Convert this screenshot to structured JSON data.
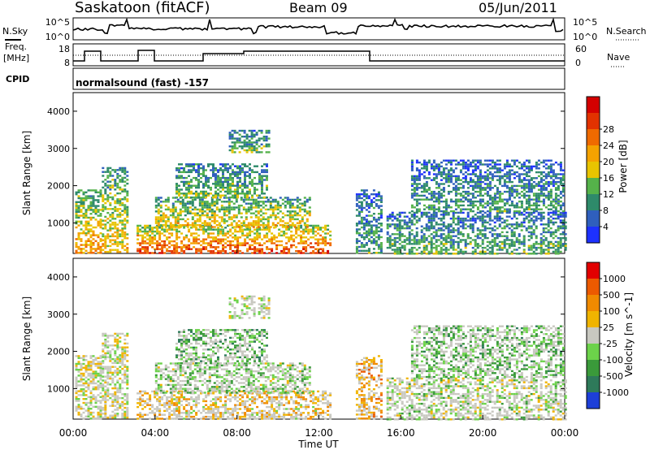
{
  "header": {
    "station": "Saskatoon (fitACF)",
    "beam": "Beam 09",
    "date": "05/Jun/2011"
  },
  "status": {
    "nsky_label": "N.Sky",
    "nsearch_label": "N.Search",
    "noise_ticks": [
      "10^5",
      "10^0"
    ],
    "freq_label": "Freq.",
    "freq_unit": "[MHz]",
    "freq_ticks": [
      "18",
      "8"
    ],
    "nave_ticks": [
      "60",
      "0"
    ],
    "nave_label": "Nave",
    "cpid_label": "CPID",
    "cpid_text": "normalsound (fast) -157"
  },
  "chart_data": [
    {
      "type": "heatmap",
      "title": "Power",
      "xlabel": "Time UT",
      "ylabel": "Slant Range [km]",
      "x_ticks": [
        "00:00",
        "04:00",
        "08:00",
        "12:00",
        "16:00",
        "20:00",
        "00:00"
      ],
      "xlim_hours": [
        0,
        24
      ],
      "y_ticks": [
        1000,
        2000,
        3000,
        4000
      ],
      "ylim_km": [
        180,
        4500
      ],
      "colorbar": {
        "label": "Power [dB]",
        "ticks": [
          4,
          8,
          12,
          16,
          20,
          24,
          28
        ],
        "colors": [
          "#1d31ff",
          "#2f5fbd",
          "#2e8a6a",
          "#55b24a",
          "#e8c400",
          "#f4a200",
          "#ef6a00",
          "#e23200",
          "#d40000"
        ]
      },
      "echo_regions": [
        {
          "t0": 0.1,
          "t1": 1.3,
          "r0": 200,
          "r1": 1900,
          "level": 0.7
        },
        {
          "t0": 1.4,
          "t1": 2.6,
          "r0": 200,
          "r1": 2500,
          "level": 0.6
        },
        {
          "t0": 3.1,
          "t1": 12.6,
          "r0": 200,
          "r1": 950,
          "level": 0.9
        },
        {
          "t0": 4.0,
          "t1": 11.5,
          "r0": 900,
          "r1": 1700,
          "level": 0.6
        },
        {
          "t0": 5.0,
          "t1": 9.5,
          "r0": 1700,
          "r1": 2600,
          "level": 0.4
        },
        {
          "t0": 7.6,
          "t1": 9.6,
          "r0": 2900,
          "r1": 3500,
          "level": 0.4
        },
        {
          "t0": 13.8,
          "t1": 15.0,
          "r0": 200,
          "r1": 1900,
          "level": 0.3
        },
        {
          "t0": 15.3,
          "t1": 24.0,
          "r0": 200,
          "r1": 1300,
          "level": 0.35
        },
        {
          "t0": 16.5,
          "t1": 23.9,
          "r0": 1300,
          "r1": 2700,
          "level": 0.3
        }
      ]
    },
    {
      "type": "heatmap",
      "title": "Velocity",
      "xlabel": "Time UT",
      "ylabel": "Slant Range [km]",
      "x_ticks": [
        "00:00",
        "04:00",
        "08:00",
        "12:00",
        "16:00",
        "20:00",
        "00:00"
      ],
      "xlim_hours": [
        0,
        24
      ],
      "y_ticks": [
        1000,
        2000,
        3000,
        4000
      ],
      "ylim_km": [
        180,
        4500
      ],
      "colorbar": {
        "label": "Velocity [m s^-1]",
        "ticks": [
          1000,
          500,
          100,
          25,
          -25,
          -100,
          -500,
          -1000
        ],
        "colors": [
          "#1d3fd8",
          "#2e7a5a",
          "#3a9a3a",
          "#6cd24a",
          "#c8c8c0",
          "#f0b400",
          "#f08a00",
          "#ec5a00",
          "#e20000"
        ]
      },
      "echo_regions": [
        {
          "t0": 0.1,
          "t1": 1.3,
          "r0": 200,
          "r1": 1900,
          "level": 0.5
        },
        {
          "t0": 1.4,
          "t1": 2.6,
          "r0": 200,
          "r1": 2500,
          "level": 0.5
        },
        {
          "t0": 3.1,
          "t1": 12.6,
          "r0": 200,
          "r1": 950,
          "level": 0.6
        },
        {
          "t0": 4.0,
          "t1": 11.5,
          "r0": 900,
          "r1": 1700,
          "level": 0.4
        },
        {
          "t0": 5.0,
          "t1": 9.5,
          "r0": 1700,
          "r1": 2600,
          "level": 0.3
        },
        {
          "t0": 7.6,
          "t1": 9.6,
          "r0": 2900,
          "r1": 3500,
          "level": 0.5
        },
        {
          "t0": 13.8,
          "t1": 15.0,
          "r0": 200,
          "r1": 1900,
          "level": 0.7
        },
        {
          "t0": 15.3,
          "t1": 24.0,
          "r0": 200,
          "r1": 1300,
          "level": 0.45
        },
        {
          "t0": 16.5,
          "t1": 23.9,
          "r0": 1300,
          "r1": 2700,
          "level": 0.35
        }
      ]
    }
  ]
}
